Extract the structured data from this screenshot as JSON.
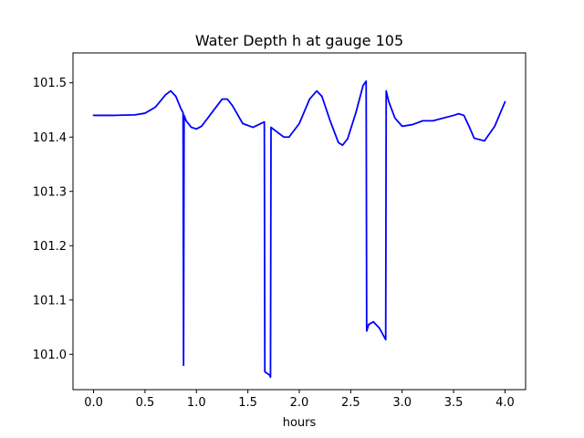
{
  "chart_data": {
    "type": "line",
    "title": "Water Depth h at gauge 105",
    "xlabel": "hours",
    "ylabel": "",
    "xlim": [
      -0.2,
      4.2
    ],
    "ylim": [
      100.935,
      101.555
    ],
    "xticks": [
      0.0,
      0.5,
      1.0,
      1.5,
      2.0,
      2.5,
      3.0,
      3.5,
      4.0
    ],
    "xtick_labels": [
      "0.0",
      "0.5",
      "1.0",
      "1.5",
      "2.0",
      "2.5",
      "3.0",
      "3.5",
      "4.0"
    ],
    "yticks": [
      101.0,
      101.1,
      101.2,
      101.3,
      101.4,
      101.5
    ],
    "ytick_labels": [
      "101.0",
      "101.1",
      "101.2",
      "101.3",
      "101.4",
      "101.5"
    ],
    "grid": false,
    "line_color": "#0000ff",
    "series": [
      {
        "x": [
          0.0,
          0.2,
          0.4,
          0.5,
          0.6,
          0.7,
          0.75,
          0.8,
          0.85,
          0.87,
          0.875,
          0.88,
          0.9,
          0.95,
          1.0,
          1.05,
          1.15,
          1.25,
          1.3,
          1.35,
          1.45,
          1.55,
          1.66,
          1.665,
          1.71,
          1.72,
          1.725,
          1.78,
          1.85,
          1.9,
          2.0,
          2.1,
          2.17,
          2.22,
          2.3,
          2.38,
          2.42,
          2.47,
          2.55,
          2.62,
          2.65,
          2.655,
          2.675,
          2.72,
          2.78,
          2.84,
          2.845,
          2.87,
          2.93,
          3.0,
          3.1,
          3.2,
          3.3,
          3.4,
          3.5,
          3.55,
          3.6,
          3.65,
          3.7,
          3.8,
          3.9,
          4.0
        ],
        "y": [
          101.44,
          101.44,
          101.441,
          101.444,
          101.455,
          101.478,
          101.485,
          101.475,
          101.452,
          101.445,
          100.98,
          101.44,
          101.43,
          101.418,
          101.415,
          101.42,
          101.445,
          101.47,
          101.47,
          101.458,
          101.425,
          101.418,
          101.428,
          100.968,
          100.962,
          100.958,
          101.418,
          101.41,
          101.4,
          101.4,
          101.425,
          101.47,
          101.485,
          101.475,
          101.43,
          101.39,
          101.385,
          101.397,
          101.445,
          101.495,
          101.503,
          101.043,
          101.055,
          101.06,
          101.048,
          101.027,
          101.485,
          101.465,
          101.435,
          101.42,
          101.423,
          101.43,
          101.43,
          101.435,
          101.44,
          101.443,
          101.44,
          101.42,
          101.398,
          101.393,
          101.42,
          101.465
        ]
      }
    ]
  }
}
